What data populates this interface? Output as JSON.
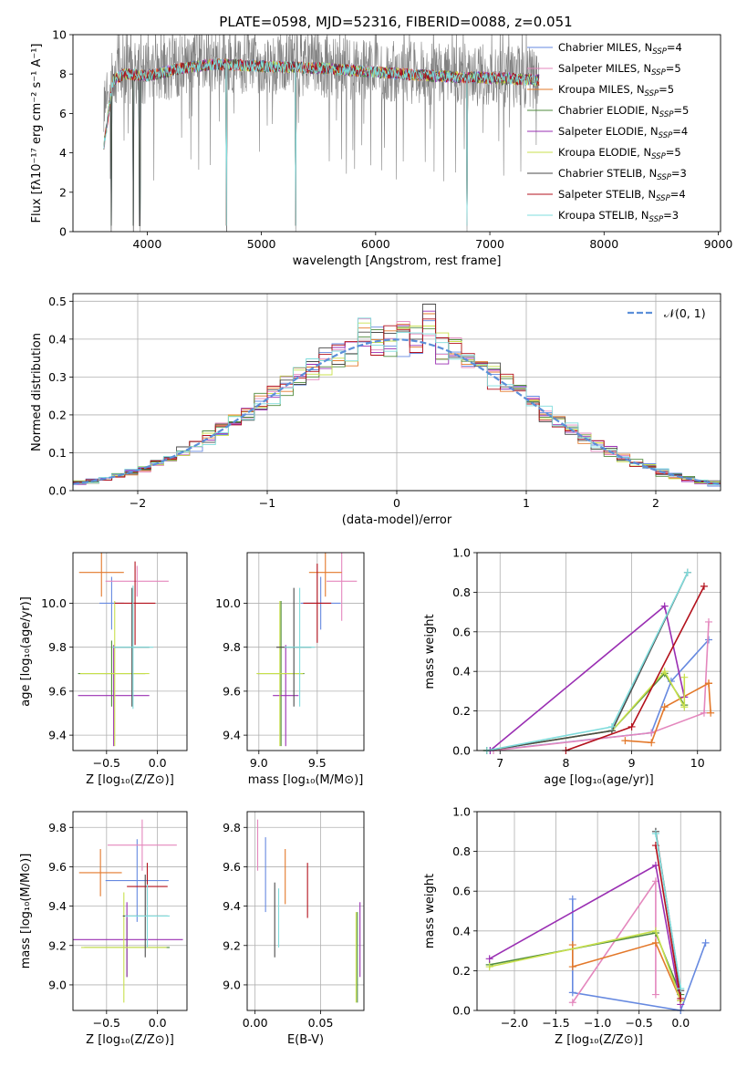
{
  "figure_title": "PLATE=0598, MJD=52316, FIBERID=0088, z=0.051",
  "colors": {
    "Chabrier MILES": "#6689e0",
    "Salpeter MILES": "#e487bd",
    "Kroupa MILES": "#e3782a",
    "Chabrier ELODIE": "#4f8b3d",
    "Salpeter ELODIE": "#9a2fb3",
    "Kroupa ELODIE": "#c8e04c",
    "Chabrier STELIB": "#4a4a4a",
    "Salpeter STELIB": "#b3111c",
    "Kroupa STELIB": "#7fdcdc",
    "data": "#808080",
    "gauss": "#5b8fd9"
  },
  "chart_data": [
    {
      "type": "line",
      "id": "spectrum",
      "xlabel": "wavelength [Angstrom, rest frame]",
      "ylabel": "Flux [fλ10⁻¹⁷ erg cm⁻² s⁻¹ A⁻¹]",
      "xlim": [
        3350,
        9020
      ],
      "ylim": [
        0,
        10
      ],
      "xticks": [
        4000,
        5000,
        6000,
        7000,
        8000,
        9000
      ],
      "yticks": [
        0,
        2,
        4,
        6,
        8,
        10
      ],
      "grid": false,
      "legend_position": "upper right",
      "data_range": [
        3620,
        7430
      ],
      "model_range": [
        3620,
        7430
      ],
      "absorption_dips": [
        3685,
        3880,
        3935,
        4695,
        5300,
        6800
      ],
      "continuum": [
        [
          3620,
          5.9
        ],
        [
          3700,
          7.8
        ],
        [
          3800,
          8.1
        ],
        [
          4000,
          8.0
        ],
        [
          4300,
          8.4
        ],
        [
          4600,
          8.6
        ],
        [
          5000,
          8.5
        ],
        [
          5500,
          8.4
        ],
        [
          6000,
          8.2
        ],
        [
          6500,
          8.0
        ],
        [
          7000,
          7.9
        ],
        [
          7400,
          7.8
        ]
      ],
      "series": [
        {
          "name": "Chabrier MILES, N",
          "sub": "SSP",
          "suffix": "=4"
        },
        {
          "name": "Salpeter MILES, N",
          "sub": "SSP",
          "suffix": "=5"
        },
        {
          "name": "Kroupa MILES, N",
          "sub": "SSP",
          "suffix": "=5"
        },
        {
          "name": "Chabrier ELODIE, N",
          "sub": "SSP",
          "suffix": "=5"
        },
        {
          "name": "Salpeter ELODIE, N",
          "sub": "SSP",
          "suffix": "=4"
        },
        {
          "name": "Kroupa ELODIE, N",
          "sub": "SSP",
          "suffix": "=5"
        },
        {
          "name": "Chabrier STELIB, N",
          "sub": "SSP",
          "suffix": "=3"
        },
        {
          "name": "Salpeter STELIB, N",
          "sub": "SSP",
          "suffix": "=4"
        },
        {
          "name": "Kroupa STELIB, N",
          "sub": "SSP",
          "suffix": "=3"
        }
      ]
    },
    {
      "type": "histogram",
      "id": "residuals",
      "xlabel": "(data-model)/error",
      "ylabel": "Normed distribution",
      "xlim": [
        -2.5,
        2.5
      ],
      "ylim": [
        0,
        0.52
      ],
      "xticks": [
        -2,
        -1,
        0,
        1,
        2
      ],
      "yticks": [
        0.0,
        0.1,
        0.2,
        0.3,
        0.4,
        0.5
      ],
      "grid": true,
      "legend": "𝒩(0, 1)",
      "legend_position": "upper right",
      "bin_width": 0.1,
      "bin_start": -2.5,
      "gaussian": {
        "mean": 0,
        "sigma": 1
      }
    },
    {
      "type": "scatter",
      "id": "age_vs_Z",
      "xlabel": "Z [log₁₀(Z/Z⊙)]",
      "ylabel": "age  [log₁₀(age/yr)]",
      "xlim": [
        -0.83,
        0.29
      ],
      "ylim": [
        9.33,
        10.23
      ],
      "xticks": [
        -0.5,
        0.0
      ],
      "yticks": [
        9.4,
        9.6,
        9.8,
        10.0
      ],
      "grid": true,
      "points": [
        {
          "model": "Chabrier MILES",
          "x": -0.45,
          "y": 10.0,
          "xerr": 0.12,
          "yerr": 0.12
        },
        {
          "model": "Salpeter MILES",
          "x": -0.2,
          "y": 10.1,
          "xerr": 0.31,
          "yerr": 0.07
        },
        {
          "model": "Kroupa MILES",
          "x": -0.55,
          "y": 10.14,
          "xerr": 0.22,
          "yerr": 0.11
        },
        {
          "model": "Chabrier ELODIE",
          "x": -0.45,
          "y": 9.68,
          "xerr": 0.33,
          "yerr": 0.15
        },
        {
          "model": "Salpeter ELODIE",
          "x": -0.43,
          "y": 9.58,
          "xerr": 0.35,
          "yerr": 0.23
        },
        {
          "model": "Kroupa ELODIE",
          "x": -0.42,
          "y": 9.68,
          "xerr": 0.34,
          "yerr": 0.33
        },
        {
          "model": "Chabrier STELIB",
          "x": -0.25,
          "y": 9.8,
          "xerr": 0.17,
          "yerr": 0.27
        },
        {
          "model": "Salpeter STELIB",
          "x": -0.22,
          "y": 10.0,
          "xerr": 0.2,
          "yerr": 0.19
        },
        {
          "model": "Kroupa STELIB",
          "x": -0.24,
          "y": 9.8,
          "xerr": 0.2,
          "yerr": 0.28
        }
      ]
    },
    {
      "type": "scatter",
      "id": "age_vs_mass",
      "xlabel": "mass [log₁₀(M/M⊙)]",
      "ylabel": "",
      "xlim": [
        8.9,
        9.9
      ],
      "ylim": [
        9.33,
        10.23
      ],
      "xticks": [
        9.0,
        9.5
      ],
      "yticks": [
        9.4,
        9.6,
        9.8,
        10.0
      ],
      "grid": true,
      "points": [
        {
          "model": "Chabrier MILES",
          "x": 9.53,
          "y": 10.0,
          "xerr": 0.17,
          "yerr": 0.12
        },
        {
          "model": "Salpeter MILES",
          "x": 9.71,
          "y": 10.1,
          "xerr": 0.13,
          "yerr": 0.18
        },
        {
          "model": "Kroupa MILES",
          "x": 9.57,
          "y": 10.14,
          "xerr": 0.14,
          "yerr": 0.11
        },
        {
          "model": "Chabrier ELODIE",
          "x": 9.19,
          "y": 9.68,
          "xerr": 0.2,
          "yerr": 0.33
        },
        {
          "model": "Salpeter ELODIE",
          "x": 9.23,
          "y": 9.58,
          "xerr": 0.11,
          "yerr": 0.23
        },
        {
          "model": "Kroupa ELODIE",
          "x": 9.18,
          "y": 9.68,
          "xerr": 0.2,
          "yerr": 0.33
        },
        {
          "model": "Chabrier STELIB",
          "x": 9.3,
          "y": 9.8,
          "xerr": 0.15,
          "yerr": 0.27
        },
        {
          "model": "Salpeter STELIB",
          "x": 9.5,
          "y": 10.0,
          "xerr": 0.12,
          "yerr": 0.18
        },
        {
          "model": "Kroupa STELIB",
          "x": 9.35,
          "y": 9.8,
          "xerr": 0.13,
          "yerr": 0.27
        }
      ]
    },
    {
      "type": "scatter",
      "id": "mass_vs_Z",
      "xlabel": "Z [log₁₀(Z/Z⊙)]",
      "ylabel": "mass [log₁₀(M/M⊙)]",
      "xlim": [
        -0.83,
        0.29
      ],
      "ylim": [
        8.87,
        9.88
      ],
      "xticks": [
        -0.5,
        0.0
      ],
      "yticks": [
        9.0,
        9.2,
        9.4,
        9.6,
        9.8
      ],
      "grid": true,
      "points": [
        {
          "model": "Chabrier MILES",
          "x": -0.2,
          "y": 9.53,
          "xerr": 0.31,
          "yerr": 0.21
        },
        {
          "model": "Salpeter MILES",
          "x": -0.15,
          "y": 9.71,
          "xerr": 0.34,
          "yerr": 0.13
        },
        {
          "model": "Kroupa MILES",
          "x": -0.56,
          "y": 9.57,
          "xerr": 0.21,
          "yerr": 0.12
        },
        {
          "model": "Chabrier ELODIE",
          "x": -0.3,
          "y": 9.19,
          "xerr": 0.42,
          "yerr": 0.15
        },
        {
          "model": "Salpeter ELODIE",
          "x": -0.3,
          "y": 9.23,
          "xerr": 0.55,
          "yerr": 0.19
        },
        {
          "model": "Kroupa ELODIE",
          "x": -0.33,
          "y": 9.19,
          "xerr": 0.42,
          "yerr": 0.28
        },
        {
          "model": "Chabrier STELIB",
          "x": -0.12,
          "y": 9.35,
          "xerr": 0.22,
          "yerr": 0.21
        },
        {
          "model": "Salpeter STELIB",
          "x": -0.1,
          "y": 9.5,
          "xerr": 0.2,
          "yerr": 0.12
        },
        {
          "model": "Kroupa STELIB",
          "x": -0.1,
          "y": 9.35,
          "xerr": 0.22,
          "yerr": 0.16
        }
      ]
    },
    {
      "type": "scatter",
      "id": "mass_vs_EBV",
      "xlabel": "E(B-V)",
      "ylabel": "",
      "xlim": [
        -0.006,
        0.083
      ],
      "ylim": [
        8.87,
        9.88
      ],
      "xticks": [
        0.0,
        0.05
      ],
      "xtick_labels": [
        "0.00",
        "0.05"
      ],
      "yticks": [
        9.0,
        9.2,
        9.4,
        9.6,
        9.8
      ],
      "grid": true,
      "points": [
        {
          "model": "Chabrier MILES",
          "x": 0.008,
          "y": 9.56,
          "xerr": 0,
          "yerr": 0.19
        },
        {
          "model": "Salpeter MILES",
          "x": 0.002,
          "y": 9.71,
          "xerr": 0,
          "yerr": 0.13
        },
        {
          "model": "Kroupa MILES",
          "x": 0.023,
          "y": 9.55,
          "xerr": 0,
          "yerr": 0.14
        },
        {
          "model": "Chabrier ELODIE",
          "x": 0.078,
          "y": 9.14,
          "xerr": 0,
          "yerr": 0.23
        },
        {
          "model": "Salpeter ELODIE",
          "x": 0.08,
          "y": 9.23,
          "xerr": 0,
          "yerr": 0.19
        },
        {
          "model": "Kroupa ELODIE",
          "x": 0.077,
          "y": 9.14,
          "xerr": 0,
          "yerr": 0.23
        },
        {
          "model": "Chabrier STELIB",
          "x": 0.015,
          "y": 9.33,
          "xerr": 0,
          "yerr": 0.19
        },
        {
          "model": "Salpeter STELIB",
          "x": 0.04,
          "y": 9.48,
          "xerr": 0,
          "yerr": 0.14
        },
        {
          "model": "Kroupa STELIB",
          "x": 0.018,
          "y": 9.34,
          "xerr": 0,
          "yerr": 0.15
        }
      ]
    },
    {
      "type": "line",
      "id": "massweight_vs_age",
      "xlabel": "age  [log₁₀(age/yr)]",
      "ylabel": "mass weight",
      "xlim": [
        6.65,
        10.35
      ],
      "ylim": [
        0,
        1.0
      ],
      "xticks": [
        7,
        8,
        9,
        10
      ],
      "yticks": [
        0.0,
        0.2,
        0.4,
        0.6,
        0.8,
        1.0
      ],
      "grid": true,
      "series": [
        {
          "model": "Chabrier MILES",
          "points": [
            [
              6.85,
              0.0
            ],
            [
              9.3,
              0.09
            ],
            [
              9.6,
              0.35
            ],
            [
              10.17,
              0.56
            ]
          ]
        },
        {
          "model": "Salpeter MILES",
          "points": [
            [
              6.9,
              0.0
            ],
            [
              9.3,
              0.09
            ],
            [
              10.1,
              0.19
            ],
            [
              10.17,
              0.65
            ]
          ]
        },
        {
          "model": "Kroupa MILES",
          "points": [
            [
              8.9,
              0.05
            ],
            [
              9.3,
              0.04
            ],
            [
              9.5,
              0.22
            ],
            [
              10.17,
              0.34
            ],
            [
              10.2,
              0.19
            ],
            [
              10.17,
              0.34
            ]
          ]
        },
        {
          "model": "Chabrier ELODIE",
          "points": [
            [
              6.8,
              0.0
            ],
            [
              8.7,
              0.1
            ],
            [
              9.5,
              0.39
            ],
            [
              9.8,
              0.23
            ]
          ]
        },
        {
          "model": "Salpeter ELODIE",
          "points": [
            [
              6.85,
              0.0
            ],
            [
              9.5,
              0.73
            ],
            [
              9.8,
              0.27
            ]
          ]
        },
        {
          "model": "Kroupa ELODIE",
          "points": [
            [
              6.8,
              0.0
            ],
            [
              8.7,
              0.1
            ],
            [
              9.5,
              0.4
            ],
            [
              9.8,
              0.22
            ],
            [
              9.8,
              0.37
            ]
          ]
        },
        {
          "model": "Chabrier STELIB",
          "points": [
            [
              6.8,
              0.0
            ],
            [
              8.7,
              0.1
            ],
            [
              9.85,
              0.9
            ]
          ]
        },
        {
          "model": "Salpeter STELIB",
          "points": [
            [
              8.0,
              0.0
            ],
            [
              9.0,
              0.12
            ],
            [
              10.1,
              0.83
            ]
          ]
        },
        {
          "model": "Kroupa STELIB",
          "points": [
            [
              6.8,
              0.0
            ],
            [
              8.7,
              0.12
            ],
            [
              9.85,
              0.9
            ]
          ]
        }
      ]
    },
    {
      "type": "line",
      "id": "massweight_vs_Z",
      "xlabel": "Z [log₁₀(Z/Z⊙)]",
      "ylabel": "mass weight",
      "xlim": [
        -2.45,
        0.48
      ],
      "ylim": [
        0,
        1.0
      ],
      "xticks": [
        -2.0,
        -1.5,
        -1.0,
        -0.5,
        0.0
      ],
      "yticks": [
        0.0,
        0.2,
        0.4,
        0.6,
        0.8,
        1.0
      ],
      "grid": true,
      "series": [
        {
          "model": "Chabrier MILES",
          "points": [
            [
              -1.3,
              0.56
            ],
            [
              -1.3,
              0.09
            ],
            [
              0.0,
              0.0
            ],
            [
              0.3,
              0.34
            ]
          ]
        },
        {
          "model": "Salpeter MILES",
          "points": [
            [
              -1.3,
              0.04
            ],
            [
              -0.3,
              0.65
            ],
            [
              -0.3,
              0.08
            ]
          ]
        },
        {
          "model": "Kroupa MILES",
          "points": [
            [
              -1.3,
              0.33
            ],
            [
              -1.3,
              0.22
            ],
            [
              -0.3,
              0.34
            ],
            [
              0.0,
              0.05
            ]
          ]
        },
        {
          "model": "Chabrier ELODIE",
          "points": [
            [
              -2.3,
              0.23
            ],
            [
              -0.3,
              0.39
            ],
            [
              0.0,
              0.08
            ]
          ]
        },
        {
          "model": "Salpeter ELODIE",
          "points": [
            [
              -2.3,
              0.26
            ],
            [
              -0.3,
              0.73
            ],
            [
              0.0,
              0.03
            ]
          ]
        },
        {
          "model": "Kroupa ELODIE",
          "points": [
            [
              -2.3,
              0.22
            ],
            [
              -0.3,
              0.4
            ],
            [
              0.0,
              0.05
            ]
          ]
        },
        {
          "model": "Chabrier STELIB",
          "points": [
            [
              -0.3,
              0.9
            ],
            [
              0.0,
              0.1
            ]
          ]
        },
        {
          "model": "Salpeter STELIB",
          "points": [
            [
              -0.3,
              0.83
            ],
            [
              0.0,
              0.06
            ]
          ]
        },
        {
          "model": "Kroupa STELIB",
          "points": [
            [
              -0.3,
              0.89
            ],
            [
              0.0,
              0.11
            ]
          ]
        }
      ]
    }
  ]
}
